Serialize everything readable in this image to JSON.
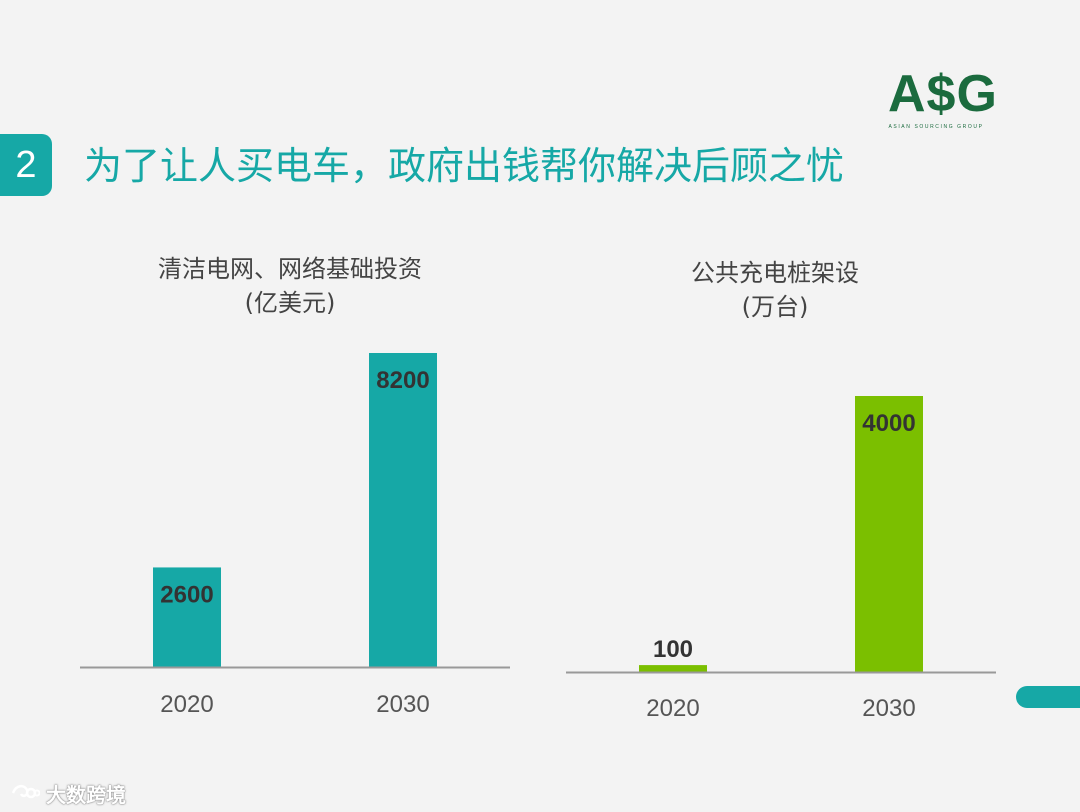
{
  "slide": {
    "number": "2",
    "title": "为了让人买电车，政府出钱帮你解决后顾之忧"
  },
  "logo": {
    "mark": "A$G",
    "subtitle": "ASIAN SOURCING GROUP"
  },
  "watermark": {
    "text": "大数跨境",
    "icon": "eye-swirl-icon"
  },
  "colors": {
    "teal": "#16a8a6",
    "green": "#7bbf00",
    "axis": "#999999",
    "text": "#555555"
  },
  "chart_data": [
    {
      "type": "bar",
      "title_line1": "清洁电网、网络基础投资",
      "title_line2": "(亿美元)",
      "categories": [
        "2020",
        "2030"
      ],
      "values": [
        2600,
        8200
      ],
      "value_labels": [
        "2600",
        "8200"
      ],
      "color": "#16a8a6",
      "ylim": [
        0,
        8200
      ]
    },
    {
      "type": "bar",
      "title_line1": "公共充电桩架设",
      "title_line2": "(万台)",
      "categories": [
        "2020",
        "2030"
      ],
      "values": [
        100,
        4000
      ],
      "value_labels": [
        "100",
        "4000"
      ],
      "color": "#7bbf00",
      "ylim": [
        0,
        4000
      ]
    }
  ]
}
